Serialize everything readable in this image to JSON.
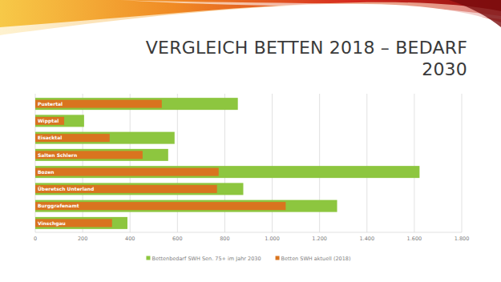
{
  "chart_data": {
    "type": "bar",
    "orientation": "horizontal",
    "title": "VERGLEICH BETTEN 2018 – BEDARF 2030",
    "categories": [
      "Pustertal",
      "Wipptal",
      "Eisacktal",
      "Salten Schlern",
      "Bozen",
      "Überetsch Unterland",
      "Burggrafenamt",
      "Vinschgau"
    ],
    "series": [
      {
        "name": "Bettenbedarf SWH Sen. 75+ im Jahr 2030",
        "color": "#8dc63f",
        "values": [
          855,
          206,
          588,
          561,
          1622,
          878,
          1274,
          389
        ]
      },
      {
        "name": "Betten SWH aktuell (2018)",
        "color": "#d9741f",
        "values": [
          534,
          122,
          314,
          453,
          774,
          767,
          1057,
          324
        ]
      }
    ],
    "xlim": [
      0,
      1800
    ],
    "xticks": [
      0,
      200,
      400,
      600,
      800,
      {
        "value": 1000,
        "label": "1.000"
      },
      {
        "value": 1200,
        "label": "1.200"
      },
      {
        "value": 1400,
        "label": "1.400"
      },
      {
        "value": 1600,
        "label": "1.600"
      },
      {
        "value": 1800,
        "label": "1.800"
      }
    ],
    "grid": true,
    "legend": "bottom"
  }
}
